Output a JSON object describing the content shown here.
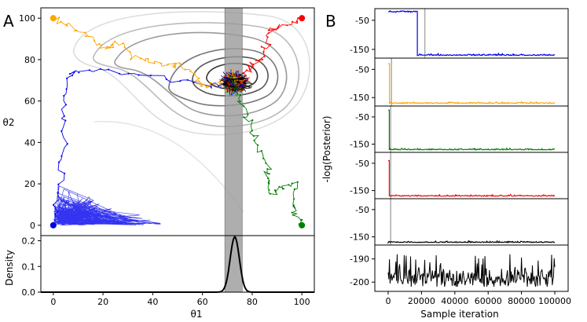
{
  "panel_labels": {
    "a": "A",
    "b": "B"
  },
  "chart_data": [
    {
      "type": "scatter",
      "name": "parameter-trace-plot",
      "title": "",
      "xlabel": "θ1",
      "ylabel": "θ2",
      "xlim": [
        -5,
        105
      ],
      "ylim": [
        -5,
        105
      ],
      "xticks": [
        "0",
        "20",
        "40",
        "60",
        "80",
        "100"
      ],
      "xtick_values": [
        0,
        20,
        40,
        60,
        80,
        100
      ],
      "yticks": [
        "0",
        "20",
        "40",
        "60",
        "80",
        "100"
      ],
      "ytick_values": [
        0,
        20,
        40,
        60,
        80,
        100
      ],
      "shaded_band": [
        69,
        76
      ],
      "mode": [
        73,
        69
      ],
      "chains": [
        {
          "name": "blue chain",
          "color": "#0000ee",
          "start": [
            0,
            0
          ],
          "path": [
            [
              0,
              0
            ],
            [
              2,
              15
            ],
            [
              3,
              30
            ],
            [
              5,
              45
            ],
            [
              4,
              58
            ],
            [
              6,
              70
            ],
            [
              10,
              75
            ],
            [
              22,
              74
            ],
            [
              35,
              73
            ],
            [
              50,
              70
            ],
            [
              62,
              68
            ],
            [
              70,
              68
            ]
          ]
        },
        {
          "name": "orange chain",
          "color": "#ffa500",
          "start": [
            0,
            100
          ],
          "path": [
            [
              0,
              100
            ],
            [
              6,
              96
            ],
            [
              12,
              92
            ],
            [
              18,
              88
            ],
            [
              22,
              86
            ],
            [
              28,
              88
            ],
            [
              32,
              82
            ],
            [
              38,
              80
            ],
            [
              45,
              78
            ],
            [
              50,
              77
            ],
            [
              55,
              75
            ],
            [
              58,
              69
            ],
            [
              61,
              67
            ],
            [
              66,
              69
            ],
            [
              71,
              69
            ]
          ]
        },
        {
          "name": "red chain",
          "color": "#ff0000",
          "start": [
            100,
            100
          ],
          "path": [
            [
              100,
              100
            ],
            [
              96,
              97
            ],
            [
              90,
              96
            ],
            [
              86,
              93
            ],
            [
              85,
              85
            ],
            [
              83,
              80
            ],
            [
              80,
              77
            ],
            [
              77,
              73
            ],
            [
              74,
              70
            ]
          ]
        },
        {
          "name": "green chain",
          "color": "#008000",
          "start": [
            100,
            0
          ],
          "path": [
            [
              100,
              0
            ],
            [
              98,
              5
            ],
            [
              96,
              10
            ],
            [
              97,
              20
            ],
            [
              92,
              18
            ],
            [
              88,
              15
            ],
            [
              86,
              22
            ],
            [
              87,
              28
            ],
            [
              84,
              35
            ],
            [
              80,
              44
            ],
            [
              78,
              52
            ],
            [
              75,
              60
            ],
            [
              73,
              65
            ],
            [
              73,
              69
            ]
          ]
        }
      ],
      "contours": [
        {
          "level": "outer",
          "color": "#dddddd"
        },
        {
          "level": "4",
          "color": "#bbbbbb"
        },
        {
          "level": "3",
          "color": "#999999"
        },
        {
          "level": "2",
          "color": "#777777"
        },
        {
          "level": "1",
          "color": "#555555"
        },
        {
          "level": "inner",
          "color": "#333333"
        }
      ]
    },
    {
      "type": "area",
      "name": "marginal-density",
      "xlabel": "θ1",
      "ylabel": "Density",
      "xlim": [
        -5,
        105
      ],
      "ylim": [
        0,
        0.22
      ],
      "yticks": [
        "0.0",
        "0.1",
        "0.2"
      ],
      "ytick_values": [
        0.0,
        0.1,
        0.2
      ],
      "xticks": [
        "0",
        "20",
        "40",
        "60",
        "80",
        "100"
      ],
      "xtick_values": [
        0,
        20,
        40,
        60,
        80,
        100
      ],
      "mean": 73,
      "sd": 1.85,
      "peak": 0.215,
      "shaded_band": [
        69,
        76
      ]
    },
    {
      "type": "line",
      "name": "posterior-traces",
      "ylabel": "-log(Posterior)",
      "xlabel": "Sample iteration",
      "xlim": [
        -8000,
        108000
      ],
      "xticks": [
        "0",
        "20000",
        "40000",
        "60000",
        "80000",
        "100000"
      ],
      "xtick_values": [
        0,
        20000,
        40000,
        60000,
        80000,
        100000
      ],
      "series": [
        {
          "name": "blue",
          "color": "#0000ee",
          "yticks": [
            "-50",
            "-150"
          ],
          "ytick_values": [
            -50,
            -150
          ],
          "ylim": [
            -180,
            -10
          ],
          "burn_in": 22000,
          "start_value": -20,
          "switch_at": 17500,
          "converged_value": -171
        },
        {
          "name": "orange",
          "color": "#ffa500",
          "yticks": [
            "-50",
            "-150"
          ],
          "ytick_values": [
            -50,
            -150
          ],
          "ylim": [
            -180,
            -10
          ],
          "burn_in": 2000,
          "start_value": -30,
          "switch_at": 800,
          "converged_value": -171
        },
        {
          "name": "green",
          "color": "#008000",
          "yticks": [
            "-50",
            "-150"
          ],
          "ytick_values": [
            -50,
            -150
          ],
          "ylim": [
            -180,
            -10
          ],
          "burn_in": 1500,
          "start_value": -25,
          "switch_at": 700,
          "converged_value": -171
        },
        {
          "name": "red",
          "color": "#ff0000",
          "yticks": [
            "-50",
            "-150"
          ],
          "ytick_values": [
            -50,
            -150
          ],
          "ylim": [
            -180,
            -10
          ],
          "burn_in": 1500,
          "start_value": -40,
          "switch_at": 700,
          "converged_value": -171
        },
        {
          "name": "black",
          "color": "#000000",
          "yticks": [
            "-50",
            "-150"
          ],
          "ytick_values": [
            -50,
            -150
          ],
          "ylim": [
            -180,
            -10
          ],
          "burn_in": 1500,
          "start_value": -168,
          "switch_at": 0,
          "converged_value": -171
        },
        {
          "name": "black (zoomed)",
          "color": "#000000",
          "yticks": [
            "-190",
            "-200"
          ],
          "ytick_values": [
            -190,
            -200
          ],
          "ylim": [
            -204,
            -184
          ],
          "burn_in": null,
          "mean": -198.5,
          "range": [
            -202,
            -188
          ]
        }
      ]
    }
  ]
}
